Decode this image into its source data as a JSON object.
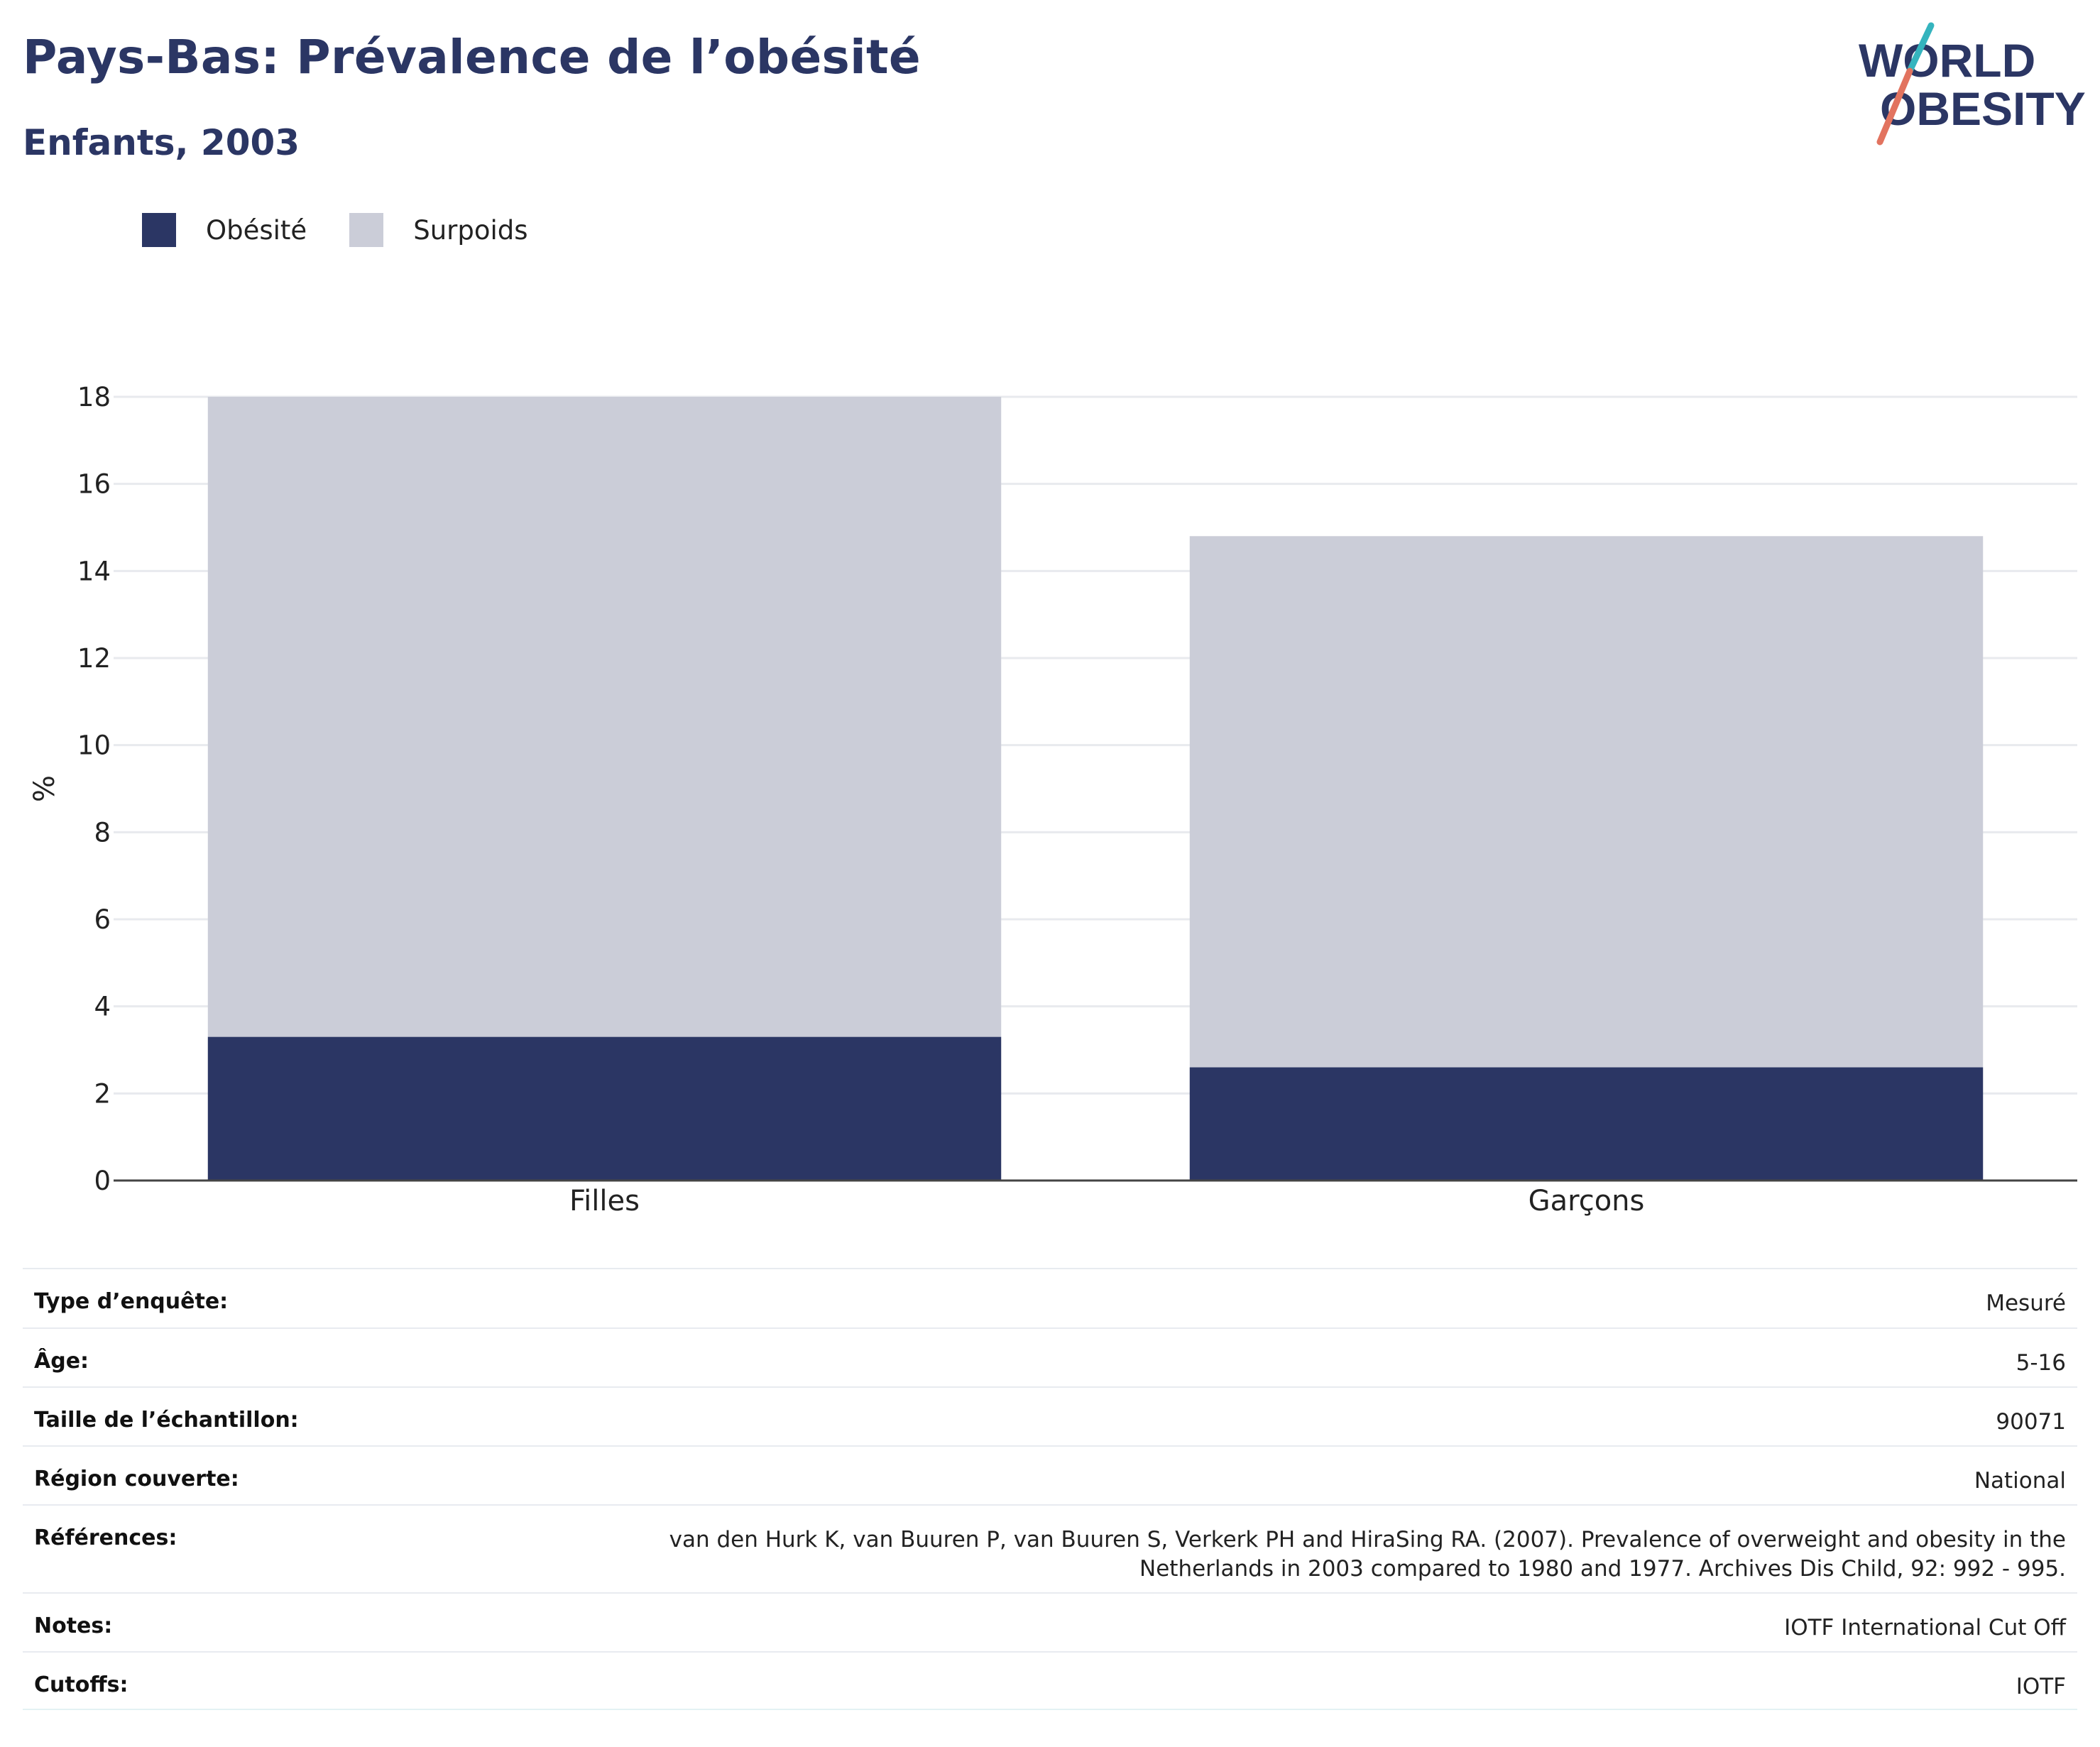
{
  "header": {
    "title": "Pays-Bas: Prévalence de l’obésité",
    "subtitle": "Enfants, 2003"
  },
  "logo": {
    "line1": "WORLD",
    "line2": "OBESITY",
    "accent_teal": "#35b4be",
    "accent_coral": "#e2735f",
    "text_color": "#2b3664"
  },
  "chart_data": {
    "type": "bar",
    "stacked": true,
    "categories": [
      "Filles",
      "Garçons"
    ],
    "series": [
      {
        "name": "Obésité",
        "color": "#2b3664",
        "values": [
          3.3,
          2.6
        ]
      },
      {
        "name": "Surpoids",
        "color": "#cbcdd8",
        "values": [
          14.7,
          12.2
        ]
      }
    ],
    "ylabel": "%",
    "xlabel": "",
    "ylim": [
      0,
      18
    ],
    "yticks": [
      0,
      2,
      4,
      6,
      8,
      10,
      12,
      14,
      16,
      18
    ],
    "grid": true,
    "legend_position": "top-left"
  },
  "meta_rows": [
    {
      "key": "Type d’enquête:",
      "value": "Mesuré"
    },
    {
      "key": "Âge:",
      "value": "5-16"
    },
    {
      "key": "Taille de l’échantillon:",
      "value": "90071"
    },
    {
      "key": "Région couverte:",
      "value": "National"
    },
    {
      "key": "Références:",
      "value": "van den Hurk K, van Buuren P, van Buuren S, Verkerk PH and HiraSing RA. (2007). Prevalence of overweight and obesity in the Netherlands in 2003 compared to 1980 and 1977. Archives Dis Child, 92: 992 - 995."
    },
    {
      "key": "Notes:",
      "value": "IOTF International Cut Off"
    },
    {
      "key": "Cutoffs:",
      "value": "IOTF"
    }
  ]
}
